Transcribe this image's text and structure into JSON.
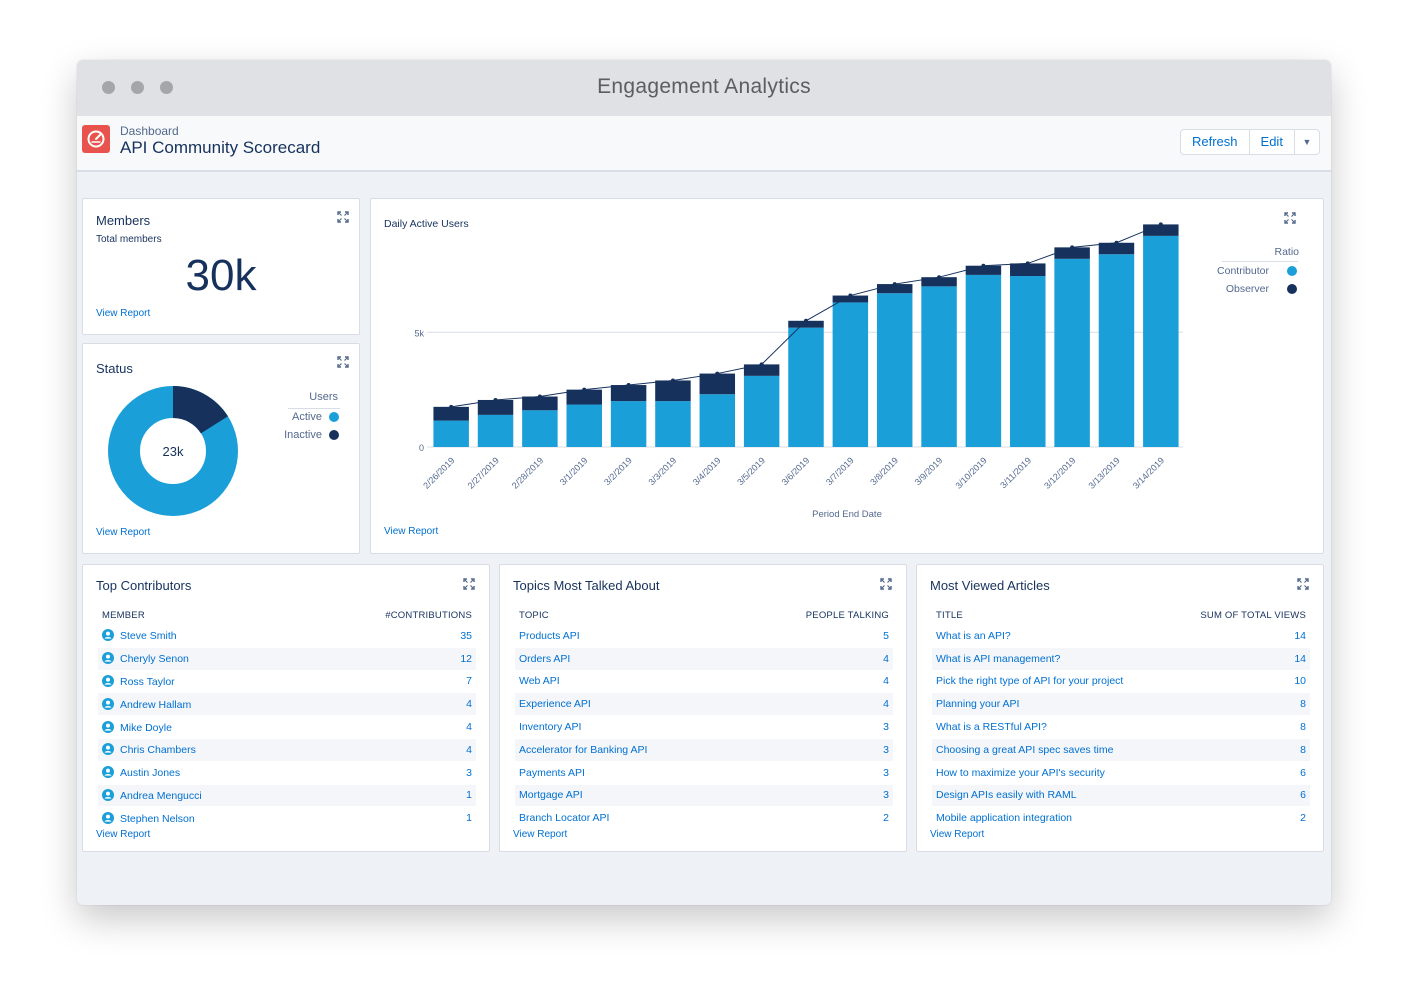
{
  "window": {
    "title": "Engagement Analytics"
  },
  "header": {
    "breadcrumb": "Dashboard",
    "title": "API Community Scorecard",
    "buttons": {
      "refresh": "Refresh",
      "edit": "Edit"
    }
  },
  "members": {
    "title": "Members",
    "subtitle": "Total members",
    "value": "30k",
    "view_report": "View Report"
  },
  "status": {
    "title": "Status",
    "center_value": "23k",
    "legend_title": "Users",
    "legend": [
      {
        "label": "Active",
        "color": "#1b9fd9"
      },
      {
        "label": "Inactive",
        "color": "#16325c"
      }
    ],
    "active_fraction": 0.84,
    "view_report": "View Report"
  },
  "dau": {
    "title": "Daily Active Users",
    "xlabel": "Period End Date",
    "legend_title": "Ratio",
    "legend": [
      {
        "label": "Contributor",
        "color": "#1b9fd9"
      },
      {
        "label": "Observer",
        "color": "#16325c"
      }
    ],
    "view_report": "View Report"
  },
  "chart_data": {
    "type": "bar",
    "stacked": true,
    "title": "Daily Active Users",
    "xlabel": "Period End Date",
    "ylabel": "",
    "ylim": [
      0,
      9500
    ],
    "yticks": [
      0,
      5000
    ],
    "ytick_labels": [
      "0",
      "5k"
    ],
    "categories": [
      "2/26/2019",
      "2/27/2019",
      "2/28/2019",
      "3/1/2019",
      "3/2/2019",
      "3/3/2019",
      "3/4/2019",
      "3/5/2019",
      "3/6/2019",
      "3/7/2019",
      "3/8/2019",
      "3/9/2019",
      "3/10/2019",
      "3/11/2019",
      "3/12/2019",
      "3/13/2019",
      "3/14/2019"
    ],
    "series": [
      {
        "name": "Contributor",
        "color": "#1b9fd9",
        "values": [
          1150,
          1400,
          1600,
          1850,
          2000,
          2000,
          2300,
          3100,
          5200,
          6300,
          6700,
          7000,
          7500,
          7450,
          8200,
          8400,
          9200
        ]
      },
      {
        "name": "Observer",
        "color": "#16325c",
        "values": [
          600,
          650,
          600,
          650,
          700,
          900,
          900,
          500,
          300,
          300,
          400,
          400,
          400,
          550,
          500,
          500,
          500
        ]
      }
    ],
    "line_total": true,
    "grid": true,
    "legend_position": "right"
  },
  "top_contributors": {
    "title": "Top Contributors",
    "columns": [
      "MEMBER",
      "#CONTRIBUTIONS"
    ],
    "rows": [
      [
        "Steve Smith",
        "35"
      ],
      [
        "Cheryly Senon",
        "12"
      ],
      [
        "Ross Taylor",
        "7"
      ],
      [
        "Andrew Hallam",
        "4"
      ],
      [
        "Mike Doyle",
        "4"
      ],
      [
        "Chris Chambers",
        "4"
      ],
      [
        "Austin Jones",
        "3"
      ],
      [
        "Andrea Mengucci",
        "1"
      ],
      [
        "Stephen Nelson",
        "1"
      ]
    ],
    "view_report": "View Report"
  },
  "topics": {
    "title": "Topics Most Talked About",
    "columns": [
      "TOPIC",
      "PEOPLE TALKING"
    ],
    "rows": [
      [
        "Products API",
        "5"
      ],
      [
        "Orders API",
        "4"
      ],
      [
        "Web API",
        "4"
      ],
      [
        "Experience API",
        "4"
      ],
      [
        "Inventory API",
        "3"
      ],
      [
        "Accelerator for Banking API",
        "3"
      ],
      [
        "Payments API",
        "3"
      ],
      [
        "Mortgage API",
        "3"
      ],
      [
        "Branch Locator API",
        "2"
      ]
    ],
    "view_report": "View Report"
  },
  "articles": {
    "title": "Most Viewed Articles",
    "columns": [
      "TITLE",
      "SUM OF TOTAL VIEWS"
    ],
    "rows": [
      [
        "What is an API?",
        "14"
      ],
      [
        "What is API management?",
        "14"
      ],
      [
        "Pick the right type of API for your project",
        "10"
      ],
      [
        "Planning your API",
        "8"
      ],
      [
        "What is a RESTful API?",
        "8"
      ],
      [
        "Choosing a great API spec saves time",
        "8"
      ],
      [
        "How to maximize your API's security",
        "6"
      ],
      [
        "Design APIs easily with RAML",
        "6"
      ],
      [
        "Mobile application integration",
        "2"
      ]
    ],
    "view_report": "View Report"
  }
}
